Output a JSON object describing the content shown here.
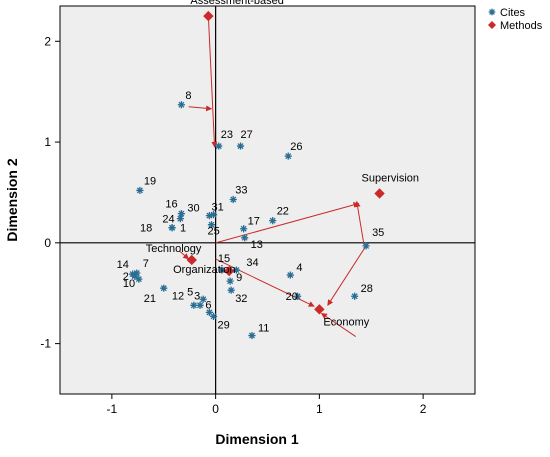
{
  "chart_data": {
    "type": "scatter",
    "xlabel": "Dimension 1",
    "ylabel": "Dimension 2",
    "xlim": [
      -1.5,
      2.5
    ],
    "ylim": [
      -1.5,
      2.35
    ],
    "xticks": [
      -1,
      0,
      1,
      2
    ],
    "yticks": [
      -1,
      0,
      1,
      2
    ],
    "xtick_labels": [
      "-1",
      "0",
      "1",
      "2"
    ],
    "ytick_labels": [
      "-1",
      "0",
      "1",
      "2"
    ],
    "grid": false,
    "reference_lines": {
      "x": 0,
      "y": 0
    },
    "legend_position": "top-right",
    "colors": {
      "plot_background": "#eeeeee",
      "cites": "#2a6f93",
      "methods": "#cc2a2a",
      "axes": "#000000"
    },
    "series": [
      {
        "name": "Cites",
        "marker": "star",
        "points": [
          {
            "label": "1",
            "x": -0.42,
            "y": 0.15
          },
          {
            "label": "2",
            "x": -0.78,
            "y": -0.33
          },
          {
            "label": "3",
            "x": -0.15,
            "y": -0.62
          },
          {
            "label": "4",
            "x": 0.72,
            "y": -0.32
          },
          {
            "label": "5",
            "x": -0.12,
            "y": -0.56
          },
          {
            "label": "6",
            "x": -0.06,
            "y": -0.69
          },
          {
            "label": "7",
            "x": -0.76,
            "y": -0.3
          },
          {
            "label": "8",
            "x": -0.33,
            "y": 1.37
          },
          {
            "label": "9",
            "x": 0.14,
            "y": -0.38
          },
          {
            "label": "10",
            "x": -0.74,
            "y": -0.36
          },
          {
            "label": "11",
            "x": 0.35,
            "y": -0.92
          },
          {
            "label": "12",
            "x": -0.21,
            "y": -0.62
          },
          {
            "label": "13",
            "x": 0.28,
            "y": 0.05
          },
          {
            "label": "14",
            "x": -0.8,
            "y": -0.31
          },
          {
            "label": "15",
            "x": 0.06,
            "y": -0.27
          },
          {
            "label": "16",
            "x": -0.33,
            "y": 0.29
          },
          {
            "label": "17",
            "x": 0.27,
            "y": 0.14
          },
          {
            "label": "18",
            "x": -0.42,
            "y": 0.15
          },
          {
            "label": "19",
            "x": -0.73,
            "y": 0.52
          },
          {
            "label": "20",
            "x": 0.79,
            "y": -0.53
          },
          {
            "label": "21",
            "x": -0.5,
            "y": -0.45
          },
          {
            "label": "22",
            "x": 0.55,
            "y": 0.22
          },
          {
            "label": "23",
            "x": 0.03,
            "y": 0.96
          },
          {
            "label": "24",
            "x": -0.34,
            "y": 0.24
          },
          {
            "label": "25",
            "x": -0.04,
            "y": 0.18
          },
          {
            "label": "26",
            "x": 0.7,
            "y": 0.86
          },
          {
            "label": "27",
            "x": 0.24,
            "y": 0.96
          },
          {
            "label": "28",
            "x": 1.34,
            "y": -0.53
          },
          {
            "label": "29",
            "x": -0.02,
            "y": -0.73
          },
          {
            "label": "30",
            "x": -0.06,
            "y": 0.27
          },
          {
            "label": "31",
            "x": -0.02,
            "y": 0.28
          },
          {
            "label": "32",
            "x": 0.15,
            "y": -0.47
          },
          {
            "label": "33",
            "x": 0.17,
            "y": 0.43
          },
          {
            "label": "34",
            "x": 0.2,
            "y": -0.27
          },
          {
            "label": "35",
            "x": 1.45,
            "y": -0.03
          }
        ]
      },
      {
        "name": "Methods",
        "marker": "diamond",
        "points": [
          {
            "label": "Assessment-based",
            "x": -0.07,
            "y": 2.25
          },
          {
            "label": "Supervision",
            "x": 1.58,
            "y": 0.49
          },
          {
            "label": "Technology",
            "x": -0.23,
            "y": -0.17
          },
          {
            "label": "Organization",
            "x": 0.13,
            "y": -0.28
          },
          {
            "label": "Economy",
            "x": 1.0,
            "y": -0.66
          }
        ]
      }
    ],
    "arrows": [
      {
        "x1": -0.07,
        "y1": 2.25,
        "x2": -0.01,
        "y2": 0.95
      },
      {
        "x1": -0.26,
        "y1": 1.35,
        "x2": -0.04,
        "y2": 1.33
      },
      {
        "x1": 0.0,
        "y1": 0.0,
        "x2": 1.38,
        "y2": 0.39
      },
      {
        "x1": 1.43,
        "y1": -0.02,
        "x2": 1.36,
        "y2": 0.41
      },
      {
        "x1": 1.45,
        "y1": -0.03,
        "x2": 1.08,
        "y2": -0.62
      },
      {
        "x1": 0.0,
        "y1": -0.16,
        "x2": 0.95,
        "y2": -0.63
      },
      {
        "x1": 1.35,
        "y1": -0.93,
        "x2": 1.02,
        "y2": -0.7
      },
      {
        "x1": -0.35,
        "y1": -0.08,
        "x2": -0.26,
        "y2": -0.16
      }
    ]
  }
}
